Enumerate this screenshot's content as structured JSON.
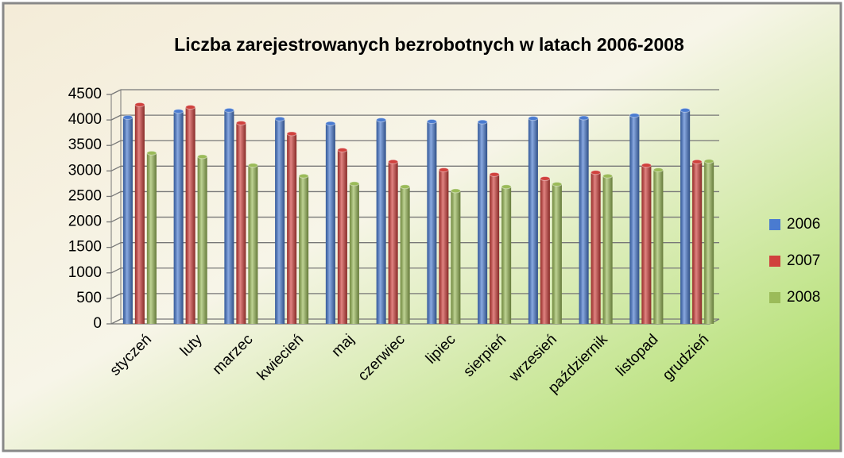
{
  "chart_data": {
    "type": "bar",
    "title": "Liczba  zarejestrowanych  bezrobotnych  w latach 2006-2008",
    "categories": [
      "styczeń",
      "luty",
      "marzec",
      "kwiecień",
      "maj",
      "czerwiec",
      "lipiec",
      "sierpień",
      "wrzesień",
      "październik",
      "listopad",
      "grudzień"
    ],
    "series": [
      {
        "name": "2006",
        "color": "#4a7bd0",
        "values": [
          4050,
          4170,
          4190,
          4020,
          3930,
          4000,
          3970,
          3960,
          4030,
          4040,
          4090,
          4190
        ]
      },
      {
        "name": "2007",
        "color": "#d0413d",
        "values": [
          4300,
          4250,
          3940,
          3730,
          3410,
          3180,
          3020,
          2930,
          2850,
          2970,
          3110,
          3180
        ]
      },
      {
        "name": "2008",
        "color": "#9bbb59",
        "values": [
          3350,
          3280,
          3110,
          2900,
          2750,
          2690,
          2610,
          2690,
          2740,
          2900,
          3020,
          3190
        ]
      }
    ],
    "ylim": [
      0,
      4500
    ],
    "yticks": [
      0,
      500,
      1000,
      1500,
      2000,
      2500,
      3000,
      3500,
      4000,
      4500
    ],
    "grid": true,
    "legend": "right"
  }
}
